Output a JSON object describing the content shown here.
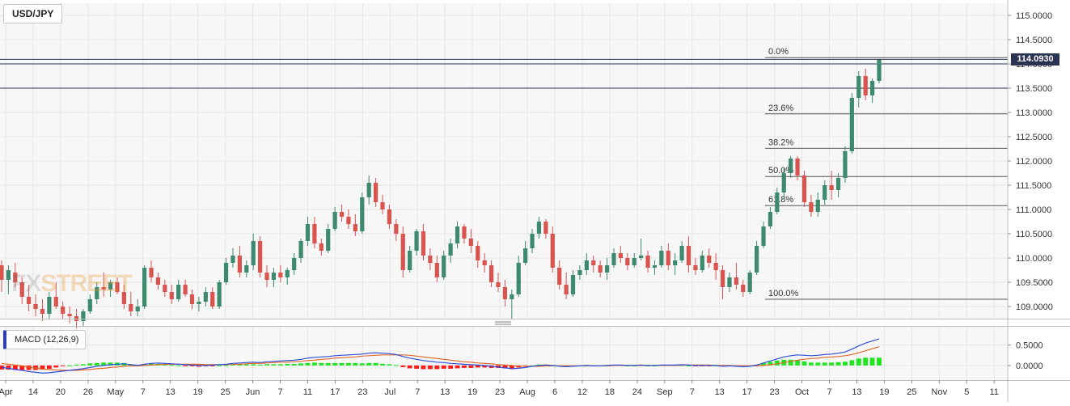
{
  "symbol": "USD/JPY",
  "watermark": {
    "part1": "FX",
    "part2": "STREET"
  },
  "last_price_label": "114.0930",
  "colors": {
    "up": "#3d8a6e",
    "down": "#d9534f",
    "macd_line": "#2f4fd8",
    "signal_line": "#e0692b",
    "hist_up": "#1ee51e",
    "hist_down": "#ff1a1a",
    "level_line": "#2b3353"
  },
  "chart_data": [
    {
      "type": "candlestick",
      "title": "USD/JPY",
      "y_ticks": [
        "115.0000",
        "114.5000",
        "114.0000",
        "113.5000",
        "113.0000",
        "112.5000",
        "112.0000",
        "111.5000",
        "111.0000",
        "110.5000",
        "110.0000",
        "109.5000",
        "109.0000"
      ],
      "ylim": [
        108.75,
        115.25
      ],
      "x_tick_labels": [
        "Apr",
        "14",
        "20",
        "26",
        "May",
        "7",
        "13",
        "19",
        "25",
        "Jun",
        "7",
        "11",
        "17",
        "23",
        "Jul",
        "7",
        "13",
        "19",
        "23",
        "Aug",
        "6",
        "12",
        "18",
        "24",
        "Sep",
        "7",
        "13",
        "17",
        "23",
        "Oct",
        "7",
        "13",
        "19",
        "25",
        "Nov",
        "5",
        "11"
      ],
      "last_price": 114.093,
      "horizontal_levels": [
        114.0,
        113.5
      ],
      "fibonacci": [
        {
          "label": "0.0%",
          "value": 114.13
        },
        {
          "label": "23.6%",
          "value": 112.97
        },
        {
          "label": "38.2%",
          "value": 112.26
        },
        {
          "label": "50.0%",
          "value": 111.68
        },
        {
          "label": "61.8%",
          "value": 111.08
        },
        {
          "label": "100.0%",
          "value": 109.15
        }
      ],
      "ohlc": [
        [
          109.85,
          109.95,
          109.3,
          109.55
        ],
        [
          109.55,
          109.85,
          109.25,
          109.75
        ],
        [
          109.7,
          109.9,
          109.4,
          109.5
        ],
        [
          109.5,
          109.6,
          109.05,
          109.2
        ],
        [
          109.2,
          109.45,
          108.9,
          109.05
        ],
        [
          109.05,
          109.25,
          108.8,
          108.95
        ],
        [
          108.95,
          109.15,
          108.7,
          108.85
        ],
        [
          108.85,
          109.3,
          108.75,
          109.2
        ],
        [
          109.2,
          109.5,
          108.95,
          109.0
        ],
        [
          109.0,
          109.1,
          108.75,
          108.85
        ],
        [
          108.85,
          109.0,
          108.65,
          108.8
        ],
        [
          108.8,
          108.95,
          108.55,
          108.7
        ],
        [
          108.7,
          108.95,
          108.6,
          108.9
        ],
        [
          108.9,
          109.25,
          108.85,
          109.15
        ],
        [
          109.15,
          109.5,
          109.05,
          109.4
        ],
        [
          109.4,
          109.7,
          109.2,
          109.35
        ],
        [
          109.35,
          109.55,
          109.2,
          109.5
        ],
        [
          109.5,
          109.6,
          109.25,
          109.3
        ],
        [
          109.3,
          109.45,
          108.95,
          109.05
        ],
        [
          109.05,
          109.3,
          108.8,
          108.9
        ],
        [
          108.9,
          109.15,
          108.8,
          109.0
        ],
        [
          109.0,
          109.85,
          108.95,
          109.8
        ],
        [
          109.8,
          109.95,
          109.5,
          109.6
        ],
        [
          109.6,
          109.7,
          109.35,
          109.45
        ],
        [
          109.45,
          109.55,
          109.2,
          109.3
        ],
        [
          109.3,
          109.45,
          109.05,
          109.15
        ],
        [
          109.15,
          109.55,
          109.1,
          109.45
        ],
        [
          109.45,
          109.55,
          109.2,
          109.25
        ],
        [
          109.25,
          109.35,
          108.95,
          109.05
        ],
        [
          109.05,
          109.2,
          108.9,
          109.1
        ],
        [
          109.1,
          109.4,
          109.0,
          109.3
        ],
        [
          109.3,
          109.4,
          108.95,
          109.0
        ],
        [
          109.0,
          109.55,
          108.95,
          109.5
        ],
        [
          109.5,
          110.0,
          109.45,
          109.9
        ],
        [
          109.9,
          110.2,
          109.8,
          110.05
        ],
        [
          110.05,
          110.25,
          109.6,
          109.7
        ],
        [
          109.7,
          109.95,
          109.6,
          109.85
        ],
        [
          109.85,
          110.5,
          109.75,
          110.35
        ],
        [
          110.35,
          110.45,
          109.6,
          109.7
        ],
        [
          109.7,
          109.85,
          109.4,
          109.55
        ],
        [
          109.55,
          109.8,
          109.4,
          109.7
        ],
        [
          109.7,
          109.85,
          109.5,
          109.6
        ],
        [
          109.6,
          109.8,
          109.45,
          109.75
        ],
        [
          109.75,
          110.1,
          109.65,
          110.0
        ],
        [
          110.0,
          110.4,
          109.9,
          110.35
        ],
        [
          110.35,
          110.85,
          110.25,
          110.7
        ],
        [
          110.7,
          110.85,
          110.2,
          110.3
        ],
        [
          110.3,
          110.4,
          110.05,
          110.15
        ],
        [
          110.15,
          110.7,
          110.1,
          110.6
        ],
        [
          110.6,
          111.05,
          110.55,
          110.95
        ],
        [
          110.95,
          111.1,
          110.75,
          110.85
        ],
        [
          110.85,
          111.0,
          110.6,
          110.7
        ],
        [
          110.7,
          110.9,
          110.45,
          110.55
        ],
        [
          110.55,
          111.35,
          110.5,
          111.25
        ],
        [
          111.25,
          111.7,
          111.1,
          111.55
        ],
        [
          111.55,
          111.65,
          111.05,
          111.15
        ],
        [
          111.15,
          111.3,
          110.9,
          111.0
        ],
        [
          111.0,
          111.1,
          110.6,
          110.7
        ],
        [
          110.7,
          110.8,
          110.35,
          110.5
        ],
        [
          110.5,
          110.65,
          109.6,
          109.75
        ],
        [
          109.75,
          110.25,
          109.7,
          110.15
        ],
        [
          110.15,
          110.6,
          110.05,
          110.55
        ],
        [
          110.55,
          110.7,
          109.95,
          110.05
        ],
        [
          110.05,
          110.2,
          109.75,
          109.9
        ],
        [
          109.9,
          110.05,
          109.5,
          109.6
        ],
        [
          109.6,
          110.15,
          109.55,
          110.05
        ],
        [
          110.05,
          110.4,
          109.9,
          110.3
        ],
        [
          110.3,
          110.75,
          110.2,
          110.65
        ],
        [
          110.65,
          110.7,
          110.3,
          110.4
        ],
        [
          110.4,
          110.6,
          110.1,
          110.25
        ],
        [
          110.25,
          110.35,
          109.8,
          109.95
        ],
        [
          109.95,
          110.1,
          109.7,
          109.85
        ],
        [
          109.85,
          109.95,
          109.4,
          109.5
        ],
        [
          109.5,
          109.7,
          109.3,
          109.4
        ],
        [
          109.4,
          109.55,
          109.0,
          109.15
        ],
        [
          109.15,
          109.35,
          108.75,
          109.25
        ],
        [
          109.25,
          110.05,
          109.2,
          109.9
        ],
        [
          109.9,
          110.35,
          109.85,
          110.2
        ],
        [
          110.2,
          110.6,
          110.1,
          110.5
        ],
        [
          110.5,
          110.85,
          110.4,
          110.75
        ],
        [
          110.75,
          110.8,
          110.4,
          110.5
        ],
        [
          110.5,
          110.65,
          109.7,
          109.8
        ],
        [
          109.8,
          109.95,
          109.35,
          109.45
        ],
        [
          109.45,
          109.7,
          109.15,
          109.25
        ],
        [
          109.25,
          109.75,
          109.2,
          109.65
        ],
        [
          109.65,
          109.85,
          109.55,
          109.75
        ],
        [
          109.75,
          110.1,
          109.65,
          109.95
        ],
        [
          109.95,
          110.05,
          109.7,
          109.85
        ],
        [
          109.85,
          109.95,
          109.6,
          109.7
        ],
        [
          109.7,
          110.0,
          109.55,
          109.85
        ],
        [
          109.85,
          110.2,
          109.8,
          110.1
        ],
        [
          110.1,
          110.25,
          109.9,
          110.0
        ],
        [
          110.0,
          110.1,
          109.75,
          109.85
        ],
        [
          109.85,
          110.1,
          109.8,
          110.0
        ],
        [
          110.0,
          110.4,
          109.95,
          110.05
        ],
        [
          110.05,
          110.15,
          109.7,
          109.8
        ],
        [
          109.8,
          109.95,
          109.65,
          109.85
        ],
        [
          109.85,
          110.25,
          109.8,
          110.15
        ],
        [
          110.15,
          110.3,
          109.75,
          109.85
        ],
        [
          109.85,
          110.1,
          109.65,
          109.95
        ],
        [
          109.95,
          110.35,
          109.9,
          110.25
        ],
        [
          110.25,
          110.45,
          109.7,
          109.85
        ],
        [
          109.85,
          110.0,
          109.65,
          109.75
        ],
        [
          109.75,
          110.15,
          109.7,
          110.05
        ],
        [
          110.05,
          110.2,
          109.8,
          109.9
        ],
        [
          109.9,
          110.1,
          109.55,
          109.75
        ],
        [
          109.75,
          109.85,
          109.15,
          109.4
        ],
        [
          109.4,
          109.7,
          109.3,
          109.6
        ],
        [
          109.6,
          109.9,
          109.35,
          109.45
        ],
        [
          109.45,
          109.55,
          109.2,
          109.3
        ],
        [
          109.3,
          109.75,
          109.25,
          109.7
        ],
        [
          109.7,
          110.35,
          109.65,
          110.25
        ],
        [
          110.25,
          110.75,
          110.2,
          110.65
        ],
        [
          110.65,
          111.05,
          110.6,
          110.95
        ],
        [
          110.95,
          111.45,
          110.9,
          111.35
        ],
        [
          111.35,
          111.85,
          111.25,
          111.75
        ],
        [
          111.75,
          112.1,
          111.65,
          112.05
        ],
        [
          112.05,
          112.1,
          111.6,
          111.7
        ],
        [
          111.7,
          111.8,
          111.05,
          111.15
        ],
        [
          111.15,
          111.3,
          110.85,
          110.95
        ],
        [
          110.95,
          111.35,
          110.85,
          111.2
        ],
        [
          111.2,
          111.6,
          111.1,
          111.5
        ],
        [
          111.5,
          111.8,
          111.2,
          111.4
        ],
        [
          111.4,
          111.75,
          111.25,
          111.65
        ],
        [
          111.65,
          112.3,
          111.55,
          112.2
        ],
        [
          112.2,
          113.4,
          112.15,
          113.3
        ],
        [
          113.3,
          113.85,
          113.1,
          113.75
        ],
        [
          113.75,
          113.9,
          113.25,
          113.35
        ],
        [
          113.35,
          113.7,
          113.2,
          113.65
        ],
        [
          113.65,
          114.1,
          113.6,
          114.09
        ]
      ]
    },
    {
      "type": "macd",
      "title": "MACD (12,26,9)",
      "y_ticks": [
        "0.5000",
        "0.0000"
      ],
      "ylim": [
        -0.36,
        0.95
      ],
      "macd": [
        -0.05,
        -0.07,
        -0.1,
        -0.12,
        -0.15,
        -0.17,
        -0.19,
        -0.18,
        -0.16,
        -0.14,
        -0.12,
        -0.1,
        -0.08,
        -0.05,
        -0.02,
        0.0,
        0.02,
        0.03,
        0.04,
        0.02,
        0.0,
        0.03,
        0.05,
        0.06,
        0.05,
        0.04,
        0.03,
        0.02,
        0.01,
        0.0,
        0.0,
        0.01,
        0.02,
        0.03,
        0.05,
        0.06,
        0.07,
        0.08,
        0.07,
        0.09,
        0.1,
        0.11,
        0.12,
        0.13,
        0.15,
        0.18,
        0.2,
        0.21,
        0.22,
        0.24,
        0.25,
        0.26,
        0.27,
        0.28,
        0.3,
        0.31,
        0.3,
        0.29,
        0.27,
        0.22,
        0.18,
        0.15,
        0.12,
        0.1,
        0.08,
        0.07,
        0.05,
        0.04,
        0.03,
        0.02,
        0.01,
        0.0,
        -0.02,
        -0.04,
        -0.06,
        -0.08,
        -0.07,
        -0.05,
        -0.02,
        0.0,
        0.01,
        0.0,
        -0.02,
        -0.03,
        -0.02,
        -0.01,
        0.0,
        -0.01,
        -0.01,
        0.0,
        0.01,
        0.01,
        0.0,
        0.0,
        0.01,
        0.0,
        0.0,
        0.01,
        0.01,
        0.01,
        0.02,
        0.01,
        0.0,
        0.0,
        0.0,
        0.0,
        -0.02,
        -0.01,
        -0.02,
        -0.03,
        -0.02,
        0.01,
        0.06,
        0.11,
        0.16,
        0.21,
        0.24,
        0.26,
        0.25,
        0.24,
        0.25,
        0.27,
        0.28,
        0.3,
        0.33,
        0.4,
        0.48,
        0.55,
        0.6,
        0.65
      ],
      "signal": [
        0.05,
        0.03,
        0.01,
        -0.01,
        -0.04,
        -0.06,
        -0.09,
        -0.1,
        -0.11,
        -0.12,
        -0.12,
        -0.12,
        -0.11,
        -0.1,
        -0.08,
        -0.07,
        -0.05,
        -0.04,
        -0.02,
        -0.01,
        -0.01,
        0.0,
        0.01,
        0.02,
        0.03,
        0.03,
        0.03,
        0.03,
        0.03,
        0.03,
        0.02,
        0.02,
        0.02,
        0.02,
        0.03,
        0.03,
        0.04,
        0.05,
        0.05,
        0.06,
        0.07,
        0.08,
        0.08,
        0.09,
        0.1,
        0.12,
        0.13,
        0.15,
        0.16,
        0.18,
        0.19,
        0.2,
        0.21,
        0.23,
        0.24,
        0.25,
        0.26,
        0.26,
        0.26,
        0.26,
        0.25,
        0.23,
        0.21,
        0.19,
        0.17,
        0.15,
        0.13,
        0.11,
        0.09,
        0.08,
        0.06,
        0.05,
        0.04,
        0.02,
        0.01,
        0.0,
        -0.02,
        -0.02,
        -0.02,
        -0.02,
        -0.01,
        -0.01,
        -0.01,
        -0.01,
        -0.01,
        -0.01,
        -0.01,
        -0.01,
        -0.01,
        -0.01,
        0.0,
        0.0,
        0.0,
        0.0,
        0.0,
        0.0,
        0.0,
        0.0,
        0.0,
        0.0,
        0.01,
        0.01,
        0.01,
        0.01,
        0.01,
        0.0,
        0.0,
        0.0,
        -0.01,
        -0.01,
        -0.01,
        -0.01,
        0.0,
        0.02,
        0.04,
        0.07,
        0.1,
        0.13,
        0.15,
        0.17,
        0.18,
        0.2,
        0.21,
        0.22,
        0.24,
        0.27,
        0.31,
        0.36,
        0.41,
        0.46
      ]
    }
  ]
}
